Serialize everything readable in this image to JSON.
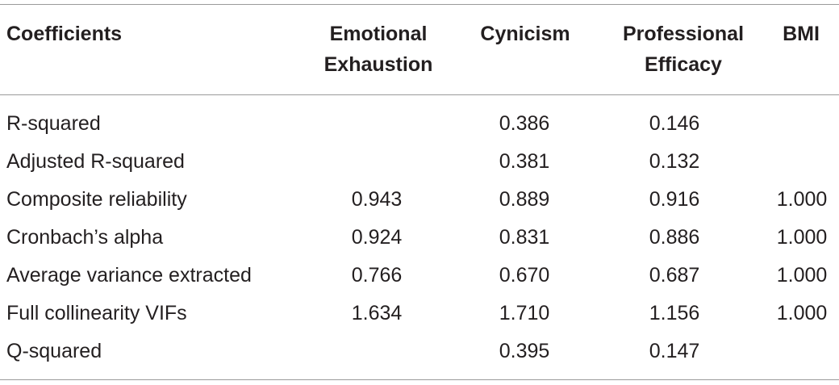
{
  "table": {
    "header": [
      [
        "Coefficients"
      ],
      [
        "Emotional",
        "Exhaustion"
      ],
      [
        "Cynicism"
      ],
      [
        "Professional",
        "Efficacy"
      ],
      [
        "BMI"
      ]
    ],
    "rows": [
      [
        "R-squared",
        null,
        "0.386",
        "0.146",
        null
      ],
      [
        "Adjusted R-squared",
        null,
        "0.381",
        "0.132",
        null
      ],
      [
        "Composite reliability",
        "0.943",
        "0.889",
        "0.916",
        "1.000"
      ],
      [
        "Cronbach’s alpha",
        "0.924",
        "0.831",
        "0.886",
        "1.000"
      ],
      [
        "Average variance extracted",
        "0.766",
        "0.670",
        "0.687",
        "1.000"
      ],
      [
        "Full collinearity VIFs",
        "1.634",
        "1.710",
        "1.156",
        "1.000"
      ],
      [
        "Q-squared",
        null,
        "0.395",
        "0.147",
        null
      ]
    ]
  }
}
